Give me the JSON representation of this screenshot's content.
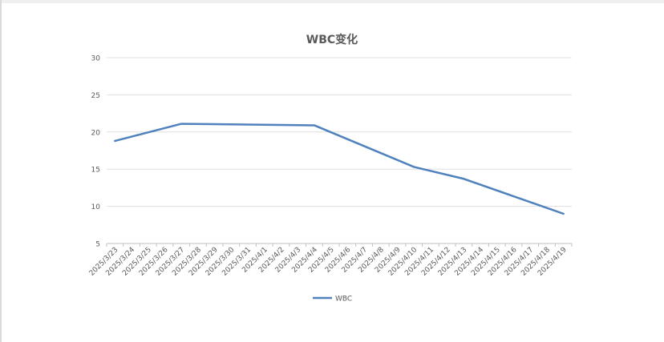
{
  "chart_data": {
    "type": "line",
    "title": "WBC变化",
    "xlabel": "",
    "ylabel": "",
    "x": [
      "2025/3/23",
      "2025/3/24",
      "2025/3/25",
      "2025/3/26",
      "2025/3/27",
      "2025/3/28",
      "2025/3/29",
      "2025/3/30",
      "2025/3/31",
      "2025/4/1",
      "2025/4/2",
      "2025/4/3",
      "2025/4/4",
      "2025/4/5",
      "2025/4/6",
      "2025/4/7",
      "2025/4/8",
      "2025/4/9",
      "2025/4/10",
      "2025/4/11",
      "2025/4/12",
      "2025/4/13",
      "2025/4/14",
      "2025/4/15",
      "2025/4/16",
      "2025/4/17",
      "2025/4/18",
      "2025/4/19"
    ],
    "series": [
      {
        "name": "WBC",
        "color": "#4f81bd",
        "points": [
          {
            "x": "2025/3/23",
            "y": 18.8
          },
          {
            "x": "2025/3/27",
            "y": 21.1
          },
          {
            "x": "2025/4/4",
            "y": 20.9
          },
          {
            "x": "2025/4/10",
            "y": 15.3
          },
          {
            "x": "2025/4/13",
            "y": 13.7
          },
          {
            "x": "2025/4/19",
            "y": 9.0
          }
        ]
      }
    ],
    "ylim": [
      5,
      30
    ],
    "yticks": [
      5,
      10,
      15,
      20,
      25,
      30
    ],
    "grid": true,
    "legend": "bottom"
  }
}
